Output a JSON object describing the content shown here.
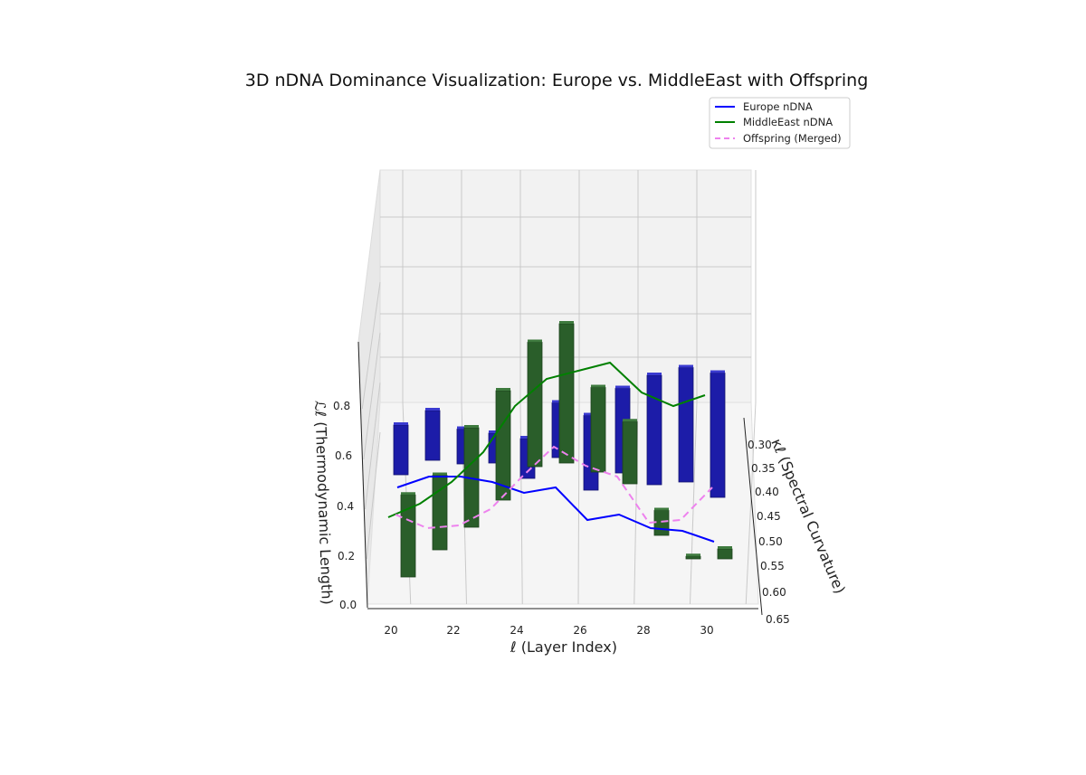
{
  "chart_data": {
    "type": "3d-bar-line",
    "title": "3D nDNA Dominance Visualization: Europe vs. MiddleEast with Offspring",
    "xlabel": "ℓ (Layer Index)",
    "ylabel": "κℓ (Spectral Curvature)",
    "zlabel": "ℒℓ (Thermodynamic Length)",
    "x_ticks": [
      "20",
      "22",
      "24",
      "26",
      "28",
      "30"
    ],
    "y_ticks": [
      "0.30",
      "0.35",
      "0.40",
      "0.45",
      "0.50",
      "0.55",
      "0.60",
      "0.65"
    ],
    "z_ticks": [
      "0.0",
      "0.2",
      "0.4",
      "0.6",
      "0.8"
    ],
    "legend": {
      "placement": "top-right",
      "entries": [
        "Europe nDNA",
        "MiddleEast nDNA",
        "Offspring (Merged)"
      ]
    },
    "colors": {
      "europe": "#0000ff",
      "middleeast": "#008000",
      "offspring": "#ee82ee",
      "europe_bar": "#1c1ca8",
      "middleeast_bar": "#2a5e2a"
    },
    "series": [
      {
        "name": "Europe nDNA",
        "layers": [
          20,
          21,
          22,
          23,
          24,
          25,
          26,
          27,
          28,
          29,
          30
        ],
        "values": [
          0.72,
          0.76,
          0.76,
          0.74,
          0.7,
          0.72,
          0.6,
          0.62,
          0.57,
          0.56,
          0.52
        ]
      },
      {
        "name": "MiddleEast nDNA",
        "layers": [
          20,
          21,
          22,
          23,
          24,
          25,
          26,
          27,
          28,
          29,
          30
        ],
        "values": [
          0.61,
          0.66,
          0.74,
          0.85,
          1.02,
          1.12,
          1.15,
          1.18,
          1.07,
          1.02,
          1.06
        ]
      },
      {
        "name": "Offspring (Merged)",
        "layers": [
          20,
          21,
          22,
          23,
          24,
          25,
          26,
          27,
          28,
          29,
          30
        ],
        "values": [
          0.62,
          0.57,
          0.58,
          0.64,
          0.76,
          0.87,
          0.8,
          0.76,
          0.59,
          0.6,
          0.72
        ]
      }
    ],
    "bars": [
      {
        "group": "Europe",
        "layer": 20,
        "height": 0.2
      },
      {
        "group": "Europe",
        "layer": 21,
        "height": 0.2
      },
      {
        "group": "Europe",
        "layer": 22,
        "height": 0.14
      },
      {
        "group": "Europe",
        "layer": 23,
        "height": 0.12
      },
      {
        "group": "Europe",
        "layer": 24,
        "height": 0.16
      },
      {
        "group": "Europe",
        "layer": 25,
        "height": 0.22
      },
      {
        "group": "Europe",
        "layer": 26,
        "height": 0.3
      },
      {
        "group": "Europe",
        "layer": 27,
        "height": 0.34
      },
      {
        "group": "Europe",
        "layer": 28,
        "height": 0.44
      },
      {
        "group": "Europe",
        "layer": 29,
        "height": 0.46
      },
      {
        "group": "Europe",
        "layer": 30,
        "height": 0.5
      },
      {
        "group": "MiddleEast",
        "layer": 20,
        "height": 0.33
      },
      {
        "group": "MiddleEast",
        "layer": 21,
        "height": 0.3
      },
      {
        "group": "MiddleEast",
        "layer": 22,
        "height": 0.4
      },
      {
        "group": "MiddleEast",
        "layer": 23,
        "height": 0.44
      },
      {
        "group": "MiddleEast",
        "layer": 24,
        "height": 0.5
      },
      {
        "group": "MiddleEast",
        "layer": 25,
        "height": 0.56
      },
      {
        "group": "MiddleEast",
        "layer": 26,
        "height": 0.34
      },
      {
        "group": "MiddleEast",
        "layer": 27,
        "height": 0.25
      },
      {
        "group": "MiddleEast",
        "layer": 28,
        "height": 0.1
      },
      {
        "group": "MiddleEast",
        "layer": 29,
        "height": 0.01
      },
      {
        "group": "MiddleEast",
        "layer": 30,
        "height": 0.04
      }
    ]
  }
}
